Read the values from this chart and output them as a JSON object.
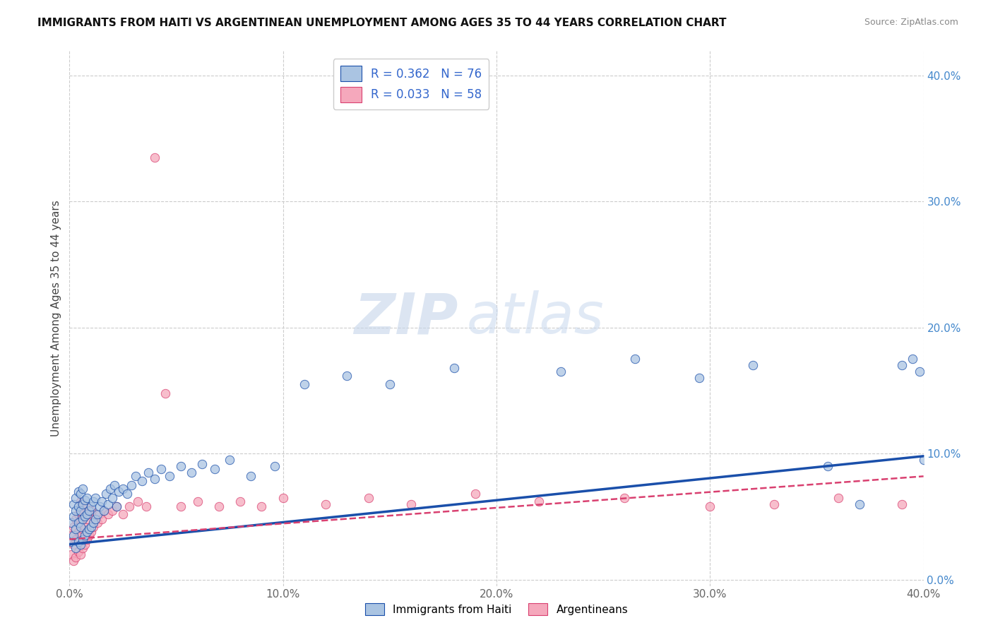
{
  "title": "IMMIGRANTS FROM HAITI VS ARGENTINEAN UNEMPLOYMENT AMONG AGES 35 TO 44 YEARS CORRELATION CHART",
  "source": "Source: ZipAtlas.com",
  "ylabel": "Unemployment Among Ages 35 to 44 years",
  "xlim": [
    0.0,
    0.4
  ],
  "ylim": [
    -0.005,
    0.42
  ],
  "yticks": [
    0.0,
    0.1,
    0.2,
    0.3,
    0.4
  ],
  "xticks": [
    0.0,
    0.1,
    0.2,
    0.3,
    0.4
  ],
  "legend_r1": "R = 0.362",
  "legend_n1": "N = 76",
  "legend_r2": "R = 0.033",
  "legend_n2": "N = 58",
  "haiti_color": "#aac4e2",
  "arg_color": "#f5a8bc",
  "haiti_line_color": "#1a4faa",
  "arg_line_color": "#d94070",
  "grid_color": "#cccccc",
  "watermark_zip": "ZIP",
  "watermark_atlas": "atlas",
  "background_color": "#ffffff",
  "haiti_x": [
    0.001,
    0.001,
    0.002,
    0.002,
    0.002,
    0.003,
    0.003,
    0.003,
    0.003,
    0.004,
    0.004,
    0.004,
    0.004,
    0.005,
    0.005,
    0.005,
    0.005,
    0.006,
    0.006,
    0.006,
    0.006,
    0.007,
    0.007,
    0.007,
    0.008,
    0.008,
    0.008,
    0.009,
    0.009,
    0.01,
    0.01,
    0.011,
    0.011,
    0.012,
    0.012,
    0.013,
    0.014,
    0.015,
    0.016,
    0.017,
    0.018,
    0.019,
    0.02,
    0.021,
    0.022,
    0.023,
    0.025,
    0.027,
    0.029,
    0.031,
    0.034,
    0.037,
    0.04,
    0.043,
    0.047,
    0.052,
    0.057,
    0.062,
    0.068,
    0.075,
    0.085,
    0.096,
    0.11,
    0.13,
    0.15,
    0.18,
    0.23,
    0.265,
    0.295,
    0.32,
    0.355,
    0.37,
    0.39,
    0.395,
    0.398,
    0.4
  ],
  "haiti_y": [
    0.03,
    0.045,
    0.035,
    0.05,
    0.06,
    0.025,
    0.04,
    0.055,
    0.065,
    0.03,
    0.045,
    0.058,
    0.07,
    0.028,
    0.042,
    0.055,
    0.068,
    0.032,
    0.048,
    0.06,
    0.072,
    0.035,
    0.05,
    0.063,
    0.038,
    0.052,
    0.065,
    0.04,
    0.055,
    0.042,
    0.058,
    0.045,
    0.062,
    0.048,
    0.065,
    0.052,
    0.058,
    0.062,
    0.055,
    0.068,
    0.06,
    0.072,
    0.065,
    0.075,
    0.058,
    0.07,
    0.072,
    0.068,
    0.075,
    0.082,
    0.078,
    0.085,
    0.08,
    0.088,
    0.082,
    0.09,
    0.085,
    0.092,
    0.088,
    0.095,
    0.082,
    0.09,
    0.155,
    0.162,
    0.155,
    0.168,
    0.165,
    0.175,
    0.16,
    0.17,
    0.09,
    0.06,
    0.17,
    0.175,
    0.165,
    0.095
  ],
  "arg_x": [
    0.001,
    0.001,
    0.002,
    0.002,
    0.002,
    0.003,
    0.003,
    0.003,
    0.004,
    0.004,
    0.004,
    0.005,
    0.005,
    0.005,
    0.005,
    0.006,
    0.006,
    0.006,
    0.007,
    0.007,
    0.007,
    0.008,
    0.008,
    0.009,
    0.009,
    0.01,
    0.01,
    0.011,
    0.012,
    0.013,
    0.014,
    0.015,
    0.016,
    0.018,
    0.02,
    0.022,
    0.025,
    0.028,
    0.032,
    0.036,
    0.04,
    0.045,
    0.052,
    0.06,
    0.07,
    0.08,
    0.09,
    0.1,
    0.12,
    0.14,
    0.16,
    0.19,
    0.22,
    0.26,
    0.3,
    0.33,
    0.36,
    0.39
  ],
  "arg_y": [
    0.02,
    0.035,
    0.015,
    0.028,
    0.042,
    0.018,
    0.032,
    0.048,
    0.022,
    0.038,
    0.052,
    0.02,
    0.035,
    0.048,
    0.062,
    0.025,
    0.04,
    0.055,
    0.028,
    0.042,
    0.058,
    0.032,
    0.048,
    0.035,
    0.052,
    0.038,
    0.055,
    0.042,
    0.048,
    0.045,
    0.052,
    0.048,
    0.055,
    0.052,
    0.055,
    0.058,
    0.052,
    0.058,
    0.062,
    0.058,
    0.335,
    0.148,
    0.058,
    0.062,
    0.058,
    0.062,
    0.058,
    0.065,
    0.06,
    0.065,
    0.06,
    0.068,
    0.062,
    0.065,
    0.058,
    0.06,
    0.065,
    0.06
  ],
  "haiti_trendline_x": [
    0.0,
    0.4
  ],
  "haiti_trendline_y": [
    0.028,
    0.098
  ],
  "arg_trendline_x": [
    0.0,
    0.4
  ],
  "arg_trendline_y": [
    0.032,
    0.082
  ]
}
